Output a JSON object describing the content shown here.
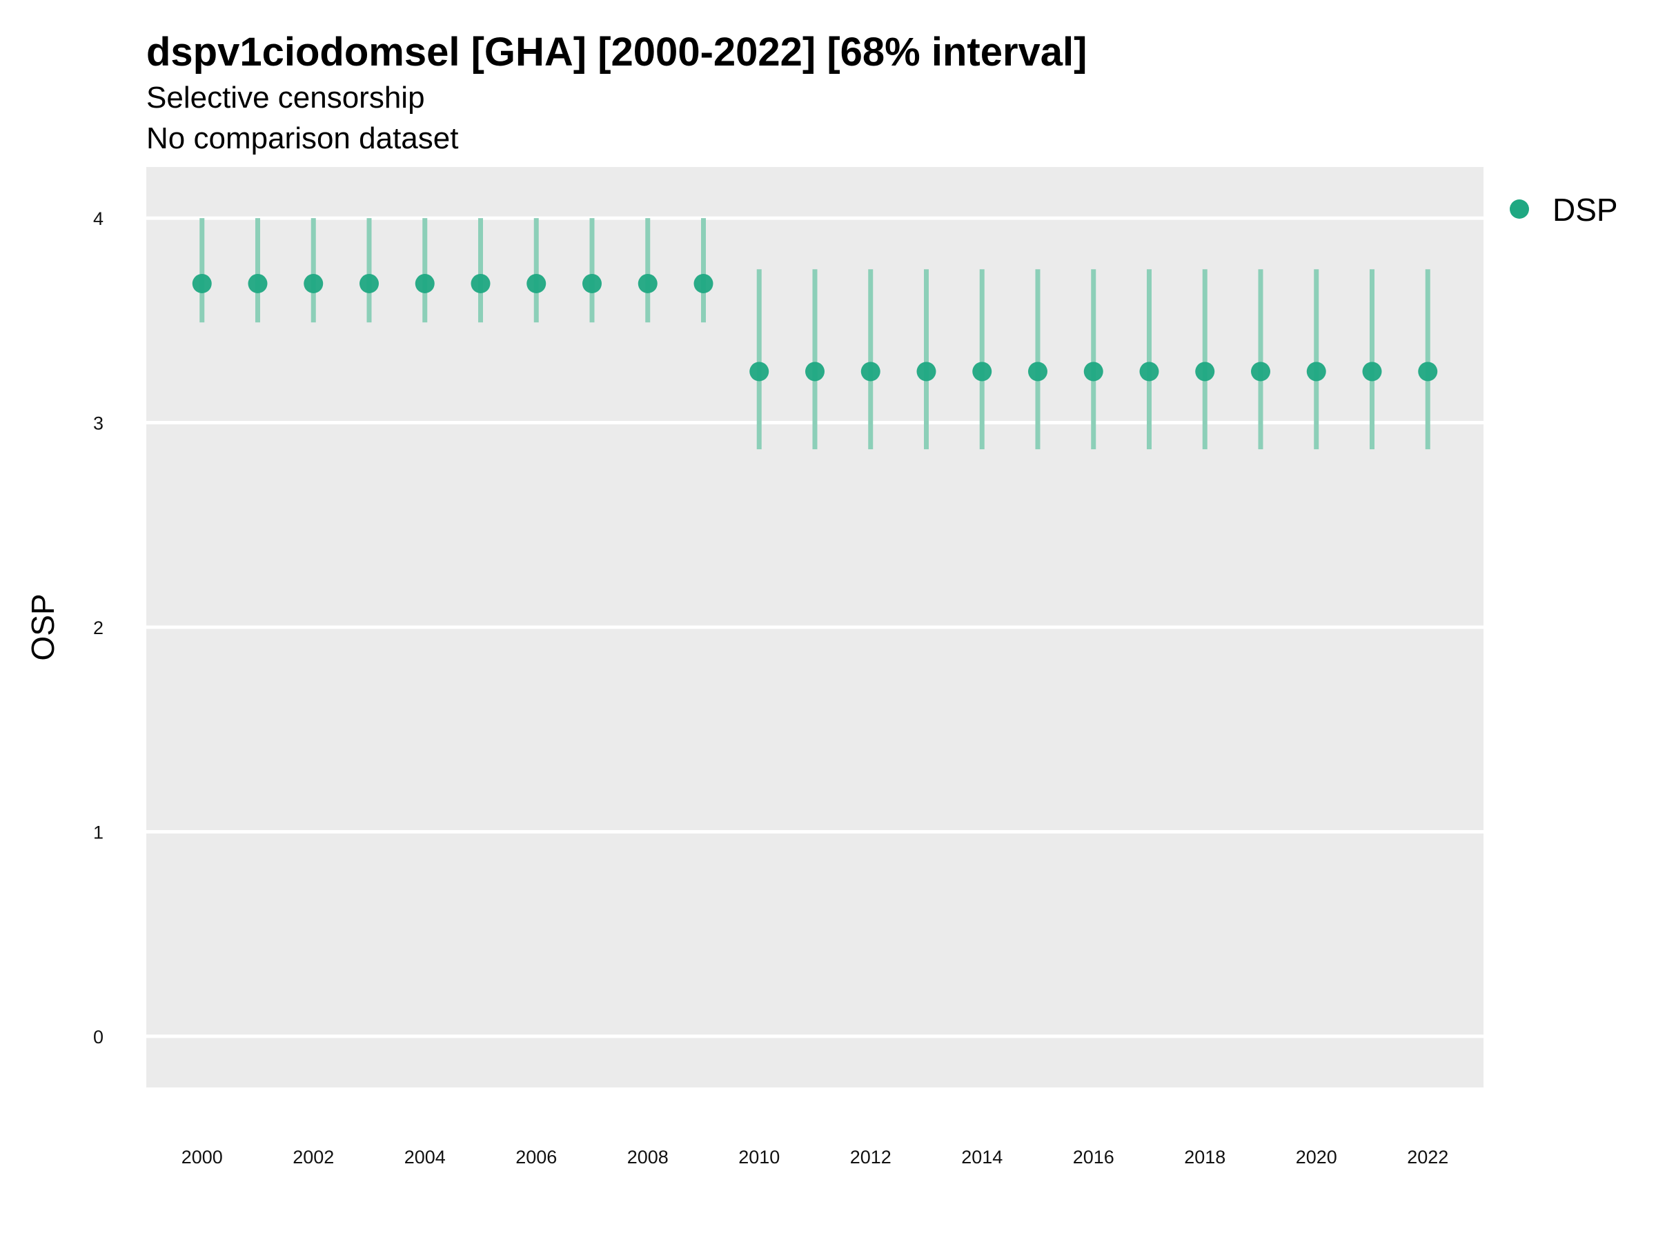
{
  "chart_data": {
    "type": "scatter",
    "title": "dspv1ciodomsel [GHA] [2000-2022] [68% interval]",
    "subtitle": "Selective censorship",
    "subtitle2": "No comparison dataset",
    "ylabel": "OSP",
    "xlabel": "",
    "ylim": [
      -0.25,
      4.25
    ],
    "xlim": [
      1999,
      2023
    ],
    "yticks": [
      0,
      1,
      2,
      3,
      4
    ],
    "xticks": [
      2000,
      2002,
      2004,
      2006,
      2008,
      2010,
      2012,
      2014,
      2016,
      2018,
      2020,
      2022
    ],
    "grid": true,
    "legend_position": "right",
    "series": [
      {
        "name": "DSP",
        "color": "#1fa882",
        "interval_color": "#8ccfb8",
        "x": [
          2000,
          2001,
          2002,
          2003,
          2004,
          2005,
          2006,
          2007,
          2008,
          2009,
          2010,
          2011,
          2012,
          2013,
          2014,
          2015,
          2016,
          2017,
          2018,
          2019,
          2020,
          2021,
          2022
        ],
        "y": [
          3.68,
          3.68,
          3.68,
          3.68,
          3.68,
          3.68,
          3.68,
          3.68,
          3.68,
          3.68,
          3.25,
          3.25,
          3.25,
          3.25,
          3.25,
          3.25,
          3.25,
          3.25,
          3.25,
          3.25,
          3.25,
          3.25,
          3.25
        ],
        "lower": [
          3.49,
          3.49,
          3.49,
          3.49,
          3.49,
          3.49,
          3.49,
          3.49,
          3.49,
          3.49,
          2.87,
          2.87,
          2.87,
          2.87,
          2.87,
          2.87,
          2.87,
          2.87,
          2.87,
          2.87,
          2.87,
          2.87,
          2.87
        ],
        "upper": [
          4.0,
          4.0,
          4.0,
          4.0,
          4.0,
          4.0,
          4.0,
          4.0,
          4.0,
          4.0,
          3.75,
          3.75,
          3.75,
          3.75,
          3.75,
          3.75,
          3.75,
          3.75,
          3.75,
          3.75,
          3.75,
          3.75,
          3.75
        ]
      }
    ]
  }
}
